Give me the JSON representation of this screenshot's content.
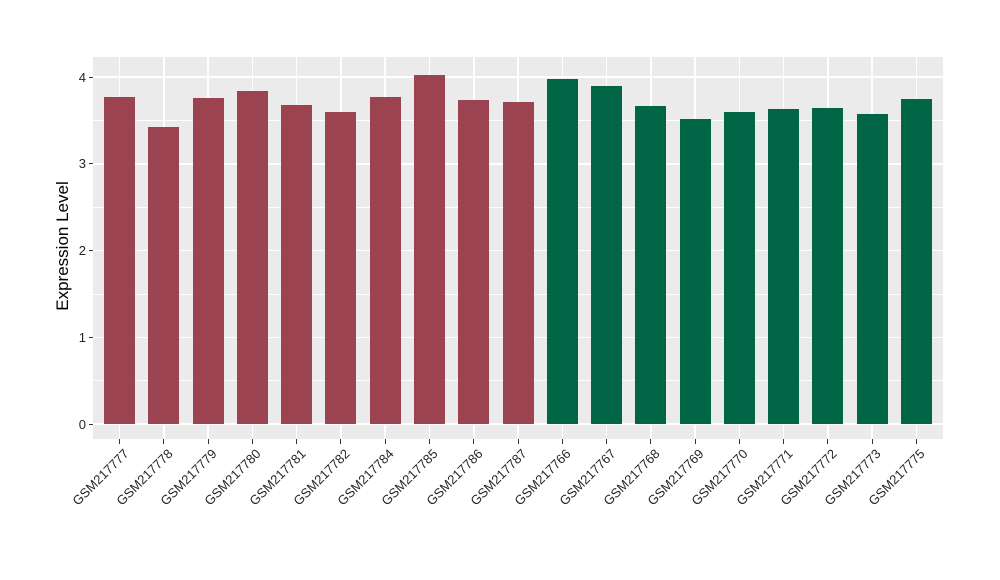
{
  "chart_data": {
    "type": "bar",
    "title": "",
    "xlabel": "",
    "ylabel": "Expression Level",
    "ylim": [
      0,
      4.23
    ],
    "yticks": [
      0,
      1,
      2,
      3,
      4
    ],
    "minor_gridlines": [
      0.5,
      1.5,
      2.5,
      3.5
    ],
    "grid": true,
    "legend": false,
    "categories": [
      "GSM217777",
      "GSM217778",
      "GSM217779",
      "GSM217780",
      "GSM217781",
      "GSM217782",
      "GSM217784",
      "GSM217785",
      "GSM217786",
      "GSM217787",
      "GSM217766",
      "GSM217767",
      "GSM217768",
      "GSM217769",
      "GSM217770",
      "GSM217771",
      "GSM217772",
      "GSM217773",
      "GSM217775"
    ],
    "values": [
      3.77,
      3.43,
      3.76,
      3.84,
      3.68,
      3.6,
      3.77,
      4.03,
      3.74,
      3.71,
      3.98,
      3.9,
      3.67,
      3.52,
      3.6,
      3.63,
      3.64,
      3.57,
      3.75
    ],
    "bar_groups": [
      0,
      0,
      0,
      0,
      0,
      0,
      0,
      0,
      0,
      0,
      1,
      1,
      1,
      1,
      1,
      1,
      1,
      1,
      1
    ],
    "group_colors": [
      "#9C4351",
      "#006646"
    ],
    "panel_background": "#EBEBEB",
    "grid_color": "#FFFFFF",
    "axis_text_color": "#262626"
  }
}
